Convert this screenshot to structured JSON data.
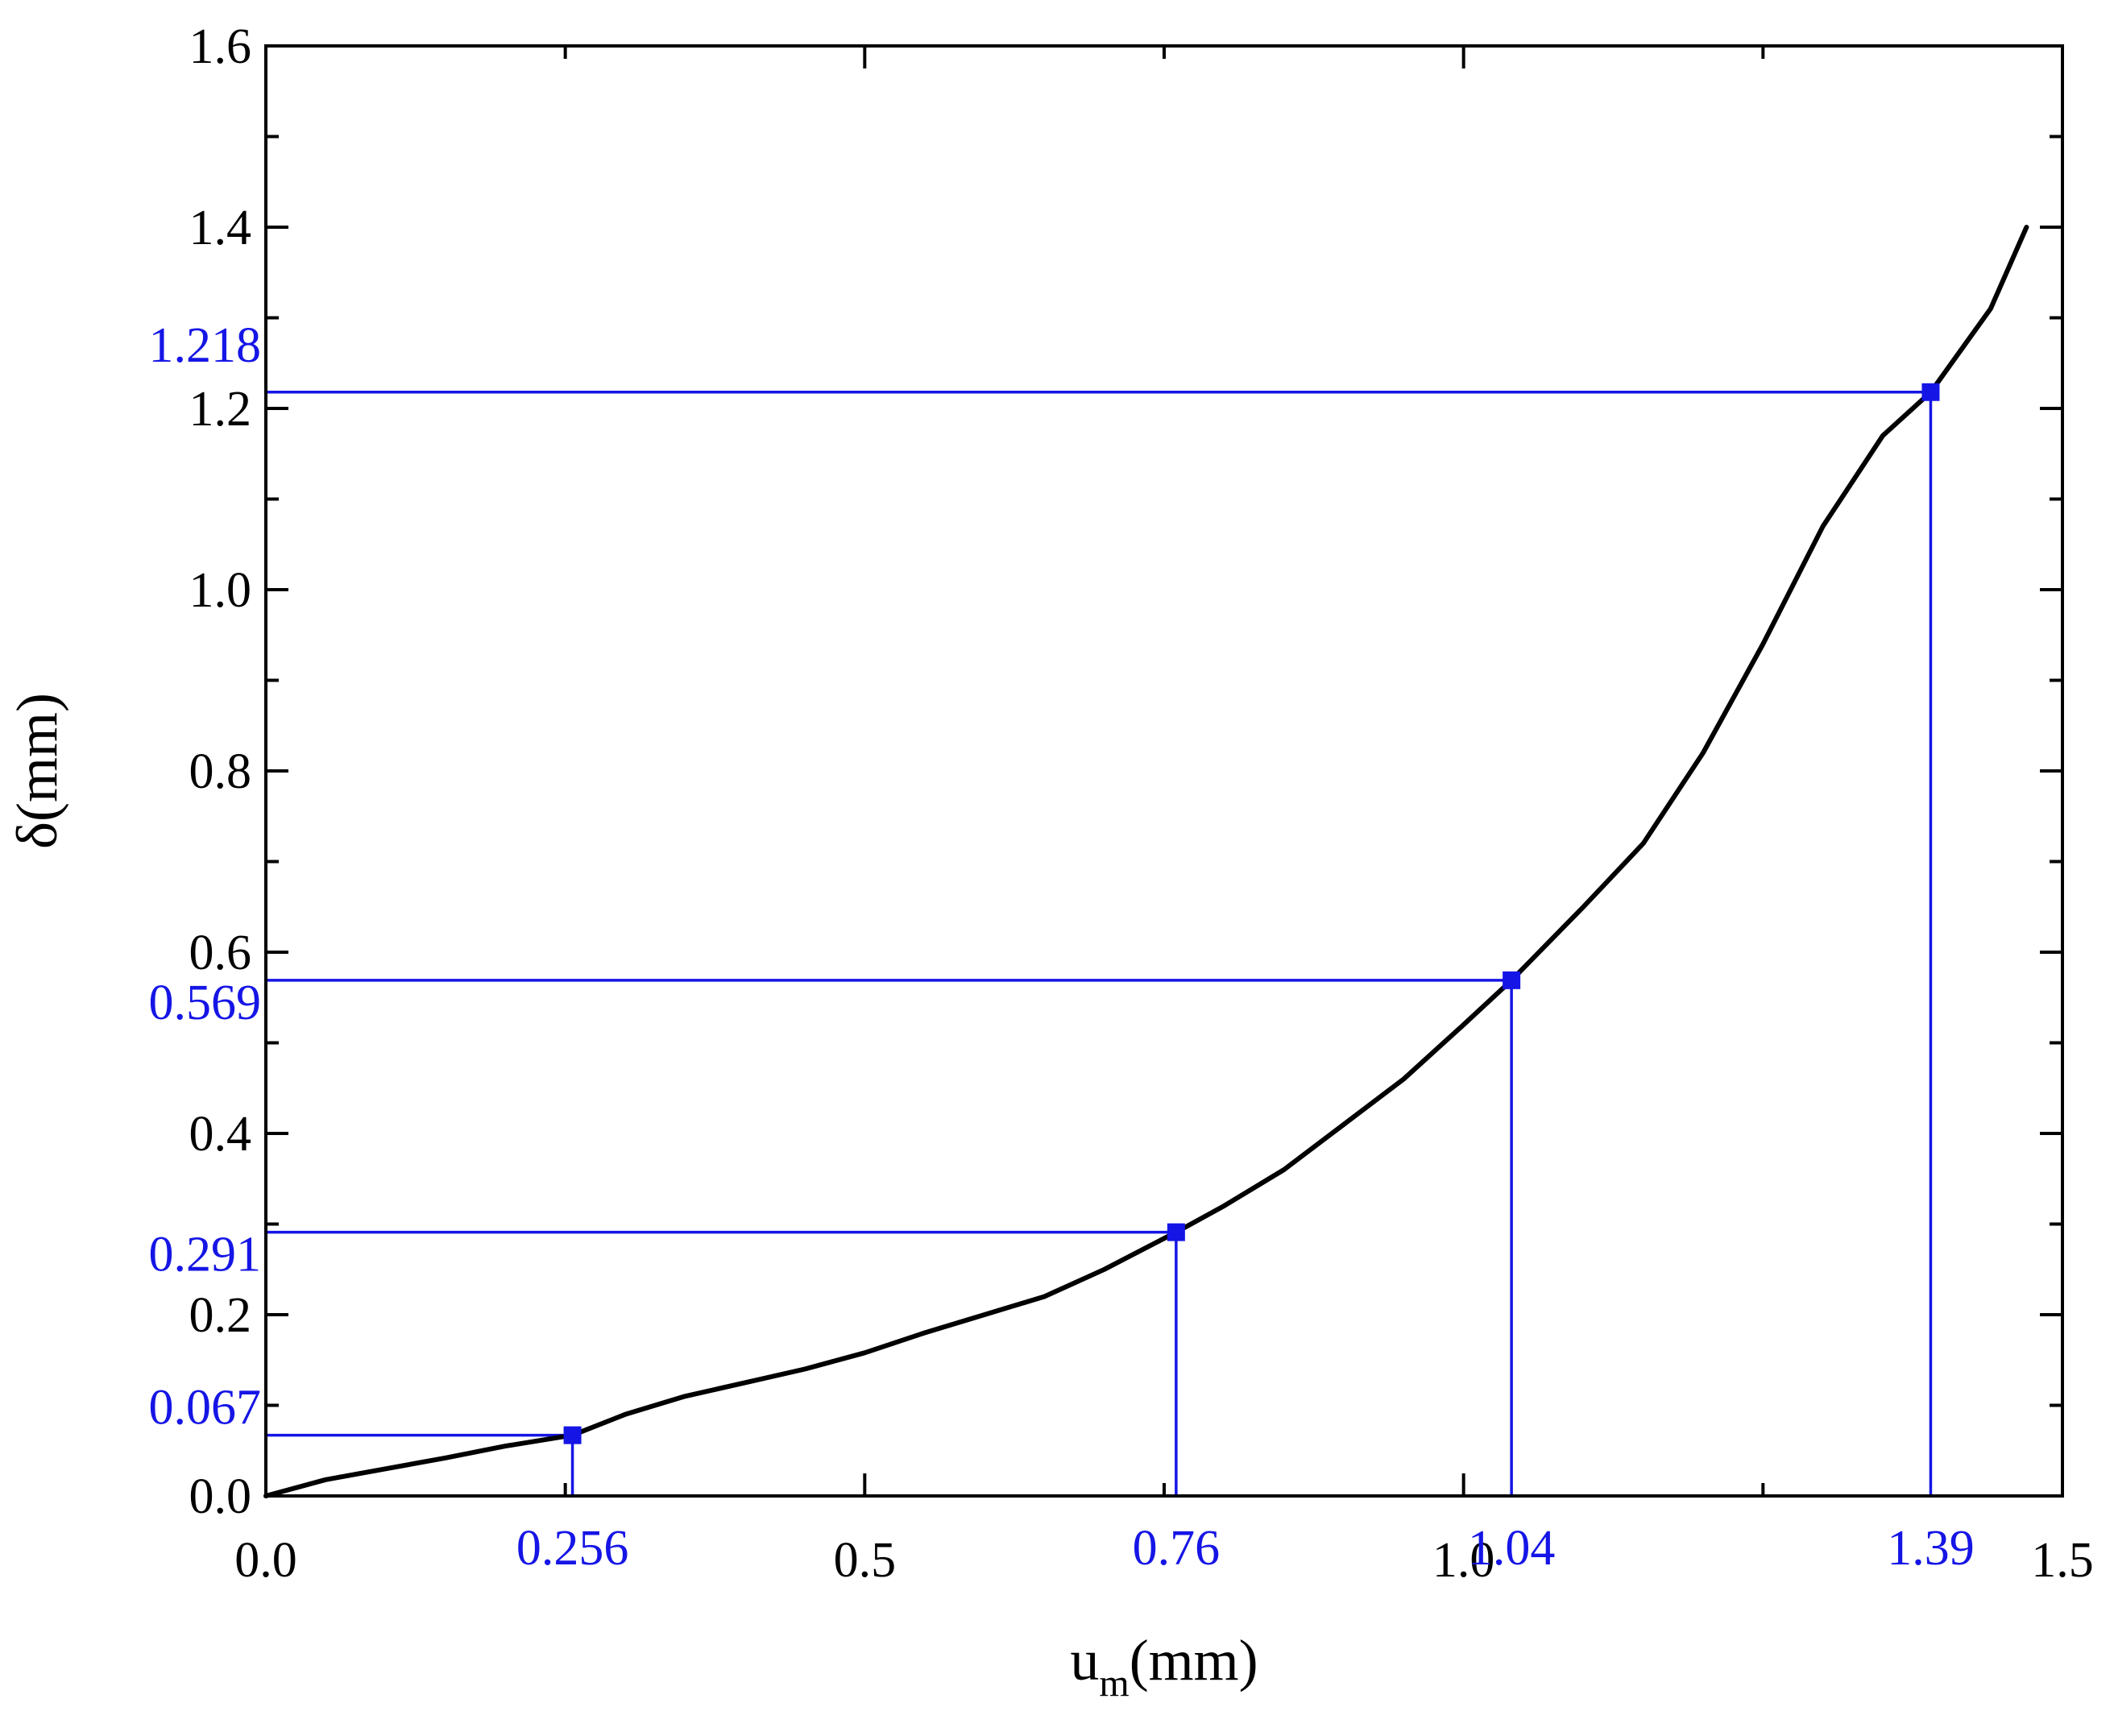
{
  "chart_data": {
    "type": "line",
    "xlabel": "u",
    "xlabel_subscript": "m",
    "xlabel_unit": "(mm)",
    "ylabel": "δ(mm)",
    "xlim": [
      0.0,
      1.5
    ],
    "ylim": [
      0.0,
      1.6
    ],
    "grid": false,
    "x_ticks": [
      {
        "value": 0.0,
        "label": "0.0"
      },
      {
        "value": 0.5,
        "label": "0.5"
      },
      {
        "value": 1.0,
        "label": "1.0"
      },
      {
        "value": 1.5,
        "label": "1.5"
      }
    ],
    "y_ticks": [
      {
        "value": 0.0,
        "label": "0.0"
      },
      {
        "value": 0.2,
        "label": "0.2"
      },
      {
        "value": 0.4,
        "label": "0.4"
      },
      {
        "value": 0.6,
        "label": "0.6"
      },
      {
        "value": 0.8,
        "label": "0.8"
      },
      {
        "value": 1.0,
        "label": "1.0"
      },
      {
        "value": 1.2,
        "label": "1.2"
      },
      {
        "value": 1.4,
        "label": "1.4"
      },
      {
        "value": 1.6,
        "label": "1.6"
      }
    ],
    "series": [
      {
        "color": "#000000",
        "x": [
          0.0,
          0.05,
          0.1,
          0.15,
          0.2,
          0.256,
          0.3,
          0.35,
          0.4,
          0.45,
          0.5,
          0.55,
          0.6,
          0.65,
          0.7,
          0.76,
          0.8,
          0.85,
          0.9,
          0.95,
          1.0,
          1.04,
          1.1,
          1.15,
          1.2,
          1.25,
          1.3,
          1.35,
          1.39,
          1.44,
          1.47
        ],
        "y": [
          0.0,
          0.018,
          0.03,
          0.042,
          0.055,
          0.067,
          0.09,
          0.11,
          0.125,
          0.14,
          0.158,
          0.18,
          0.2,
          0.22,
          0.25,
          0.291,
          0.32,
          0.36,
          0.41,
          0.46,
          0.52,
          0.569,
          0.65,
          0.72,
          0.82,
          0.94,
          1.07,
          1.17,
          1.218,
          1.31,
          1.4
        ]
      }
    ],
    "highlight_color": "#1515e6",
    "highlight_points": [
      {
        "x": 0.256,
        "y": 0.067,
        "x_label": "0.256",
        "y_label": "0.067"
      },
      {
        "x": 0.76,
        "y": 0.291,
        "x_label": "0.76",
        "y_label": "0.291"
      },
      {
        "x": 1.04,
        "y": 0.569,
        "x_label": "1.04",
        "y_label": "0.569"
      },
      {
        "x": 1.39,
        "y": 1.218,
        "x_label": "1.39",
        "y_label": "1.218"
      }
    ]
  }
}
